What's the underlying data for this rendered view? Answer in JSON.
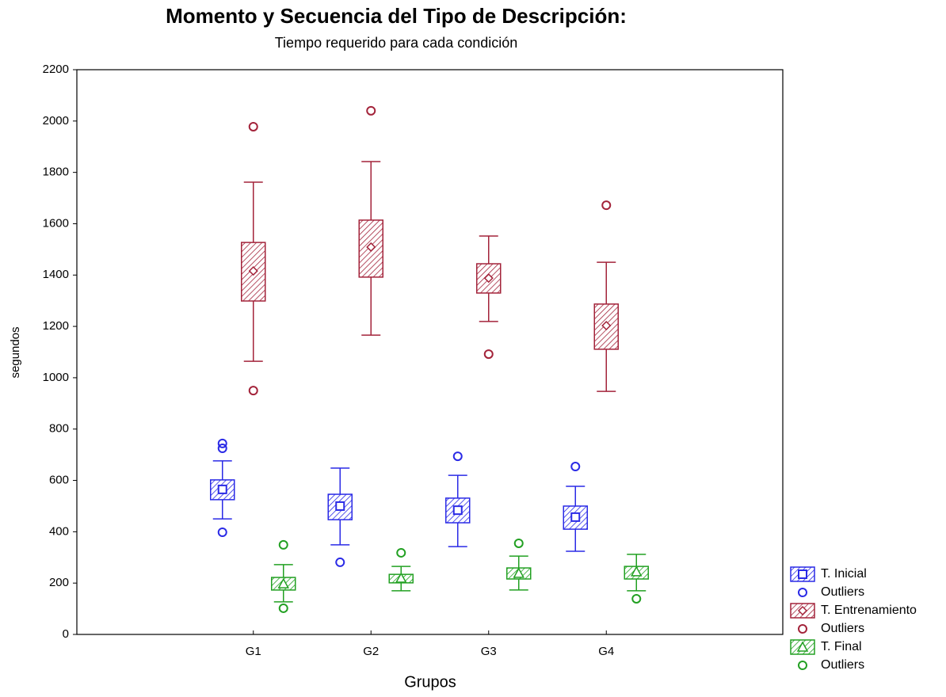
{
  "chart_data": {
    "type": "box",
    "title": "Momento y Secuencia del Tipo de Descripción:",
    "subtitle": "Tiempo requerido para cada condición",
    "x_label": "Grupos",
    "y_label": "segundos",
    "categories": [
      "G1",
      "G2",
      "G3",
      "G4"
    ],
    "ylim": [
      0,
      2200
    ],
    "yticks": [
      0,
      200,
      400,
      600,
      800,
      1000,
      1200,
      1400,
      1600,
      1800,
      2000,
      2200
    ],
    "series": [
      {
        "name": "T. Inicial",
        "color": "#2a2ae6",
        "marker": "square",
        "outliers_label": "Outliers",
        "whisker_low": [
          450,
          349,
          342,
          324
        ],
        "box_low": [
          525,
          447,
          435,
          410
        ],
        "center": [
          565,
          500,
          484,
          457
        ],
        "box_high": [
          602,
          546,
          531,
          500
        ],
        "whisker_high": [
          676,
          648,
          620,
          577
        ],
        "outliers": [
          [
            744,
            725,
            398
          ],
          [
            281
          ],
          [
            694
          ],
          [
            654
          ]
        ]
      },
      {
        "name": "T. Entrenamiento",
        "color": "#a3233a",
        "marker": "diamond",
        "outliers_label": "Outliers",
        "whisker_low": [
          1064,
          1166,
          1219,
          947
        ],
        "box_low": [
          1299,
          1392,
          1330,
          1111
        ],
        "center": [
          1416,
          1509,
          1388,
          1203
        ],
        "box_high": [
          1527,
          1614,
          1444,
          1287
        ],
        "whisker_high": [
          1762,
          1842,
          1552,
          1450
        ],
        "outliers": [
          [
            1978,
            950
          ],
          [
            2040
          ],
          [
            1092
          ],
          [
            1672
          ]
        ]
      },
      {
        "name": "T. Final",
        "color": "#22a022",
        "marker": "triangle",
        "outliers_label": "Outliers",
        "whisker_low": [
          127,
          170,
          173,
          170
        ],
        "box_low": [
          173,
          201,
          216,
          216
        ],
        "center": [
          197,
          219,
          238,
          244
        ],
        "box_high": [
          222,
          234,
          259,
          265
        ],
        "whisker_high": [
          272,
          265,
          305,
          312
        ],
        "outliers": [
          [
            349,
            102
          ],
          [
            318
          ],
          [
            355
          ],
          [
            139
          ]
        ]
      }
    ]
  }
}
